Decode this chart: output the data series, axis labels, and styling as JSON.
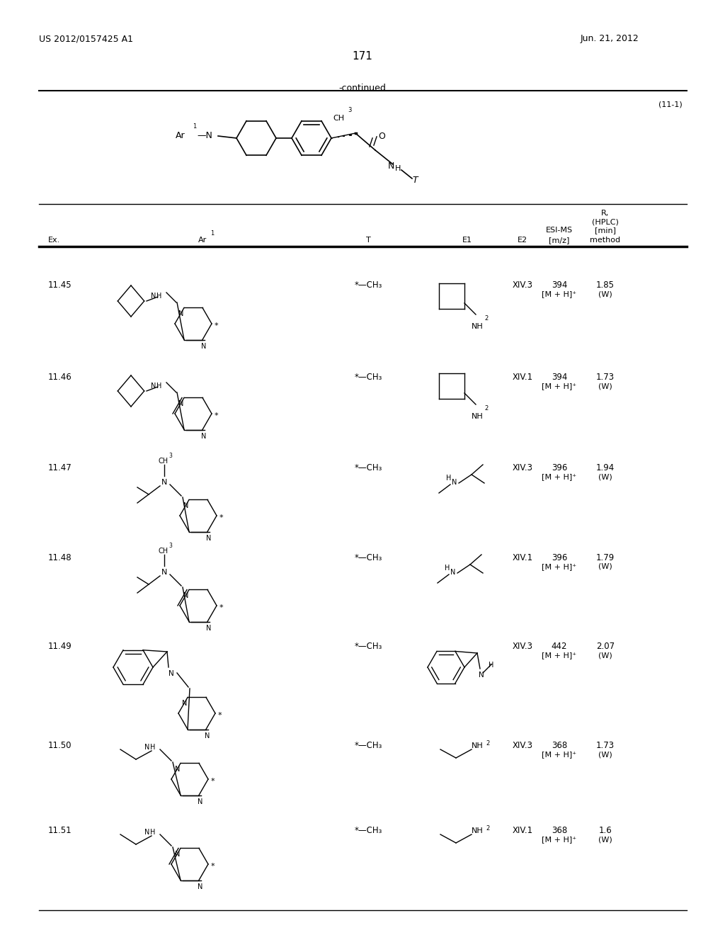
{
  "page_number": "171",
  "patent_number": "US 2012/0157425 A1",
  "patent_date": "Jun. 21, 2012",
  "continued_label": "-continued",
  "formula_label": "(11-1)",
  "background_color": "#ffffff",
  "rows": [
    {
      "ex": "11.45",
      "E2": "XIV.3",
      "mz": "394",
      "mz2": "[M + H]⁺",
      "rt": "1.85",
      "rt2": "(W)"
    },
    {
      "ex": "11.46",
      "E2": "XIV.1",
      "mz": "394",
      "mz2": "[M + H]⁺",
      "rt": "1.73",
      "rt2": "(W)"
    },
    {
      "ex": "11.47",
      "E2": "XIV.3",
      "mz": "396",
      "mz2": "[M + H]⁺",
      "rt": "1.94",
      "rt2": "(W)"
    },
    {
      "ex": "11.48",
      "E2": "XIV.1",
      "mz": "396",
      "mz2": "[M + H]⁺",
      "rt": "1.79",
      "rt2": "(W)"
    },
    {
      "ex": "11.49",
      "E2": "XIV.3",
      "mz": "442",
      "mz2": "[M + H]⁺",
      "rt": "2.07",
      "rt2": "(W)"
    },
    {
      "ex": "11.50",
      "E2": "XIV.3",
      "mz": "368",
      "mz2": "[M + H]⁺",
      "rt": "1.73",
      "rt2": "(W)"
    },
    {
      "ex": "11.51",
      "E2": "XIV.1",
      "mz": "368",
      "mz2": "[M + H]⁺",
      "rt": "1.6",
      "rt2": "(W)"
    }
  ]
}
